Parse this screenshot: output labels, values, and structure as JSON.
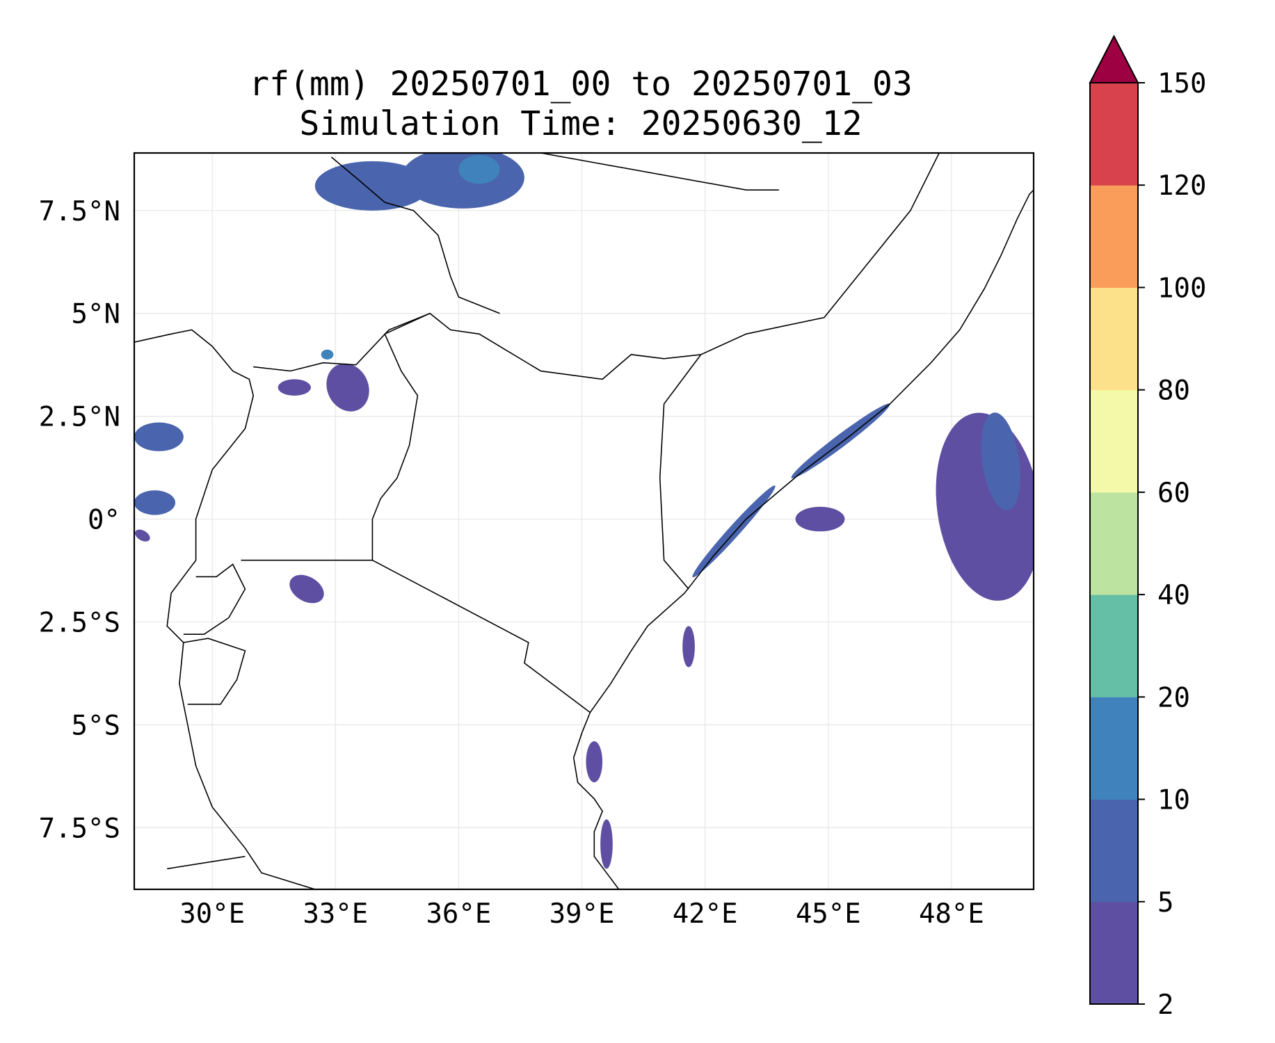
{
  "title": {
    "line1": "rf(mm) 20250701_00 to 20250701_03",
    "line2": "Simulation Time: 20250630_12"
  },
  "map": {
    "lon_range": [
      28.1,
      50.0
    ],
    "lat_range": [
      -9.0,
      8.9
    ],
    "gridlines": true,
    "lon_ticks": [
      {
        "value": 30,
        "label": "30°E"
      },
      {
        "value": 33,
        "label": "33°E"
      },
      {
        "value": 36,
        "label": "36°E"
      },
      {
        "value": 39,
        "label": "39°E"
      },
      {
        "value": 42,
        "label": "42°E"
      },
      {
        "value": 45,
        "label": "45°E"
      },
      {
        "value": 48,
        "label": "48°E"
      }
    ],
    "lat_ticks": [
      {
        "value": 7.5,
        "label": "7.5°N"
      },
      {
        "value": 5,
        "label": "5°N"
      },
      {
        "value": 2.5,
        "label": "2.5°N"
      },
      {
        "value": 0,
        "label": "0°"
      },
      {
        "value": -2.5,
        "label": "2.5°S"
      },
      {
        "value": -5,
        "label": "5°S"
      },
      {
        "value": -7.5,
        "label": "7.5°S"
      }
    ],
    "coastline": [
      [
        39.9,
        -9.0
      ],
      [
        39.6,
        -8.6
      ],
      [
        39.3,
        -8.2
      ],
      [
        39.3,
        -7.6
      ],
      [
        39.5,
        -7.1
      ],
      [
        39.3,
        -6.8
      ],
      [
        38.9,
        -6.4
      ],
      [
        38.8,
        -5.8
      ],
      [
        39.0,
        -5.2
      ],
      [
        39.2,
        -4.7
      ],
      [
        39.7,
        -4.0
      ],
      [
        40.2,
        -3.2
      ],
      [
        40.6,
        -2.6
      ],
      [
        41.5,
        -1.8
      ],
      [
        42.2,
        -0.9
      ],
      [
        43.0,
        0.0
      ],
      [
        44.3,
        1.1
      ],
      [
        45.5,
        2.0
      ],
      [
        46.5,
        2.8
      ],
      [
        47.5,
        3.8
      ],
      [
        48.2,
        4.6
      ],
      [
        48.8,
        5.6
      ],
      [
        49.2,
        6.4
      ],
      [
        49.6,
        7.3
      ],
      [
        49.9,
        7.9
      ],
      [
        50.0,
        8.0
      ]
    ],
    "borders": [
      [
        [
          33.9,
          -1.0
        ],
        [
          37.7,
          -3.0
        ],
        [
          37.6,
          -3.5
        ],
        [
          39.2,
          -4.7
        ]
      ],
      [
        [
          30.7,
          -1.0
        ],
        [
          33.9,
          -1.0
        ],
        [
          33.9,
          0.0
        ],
        [
          34.1,
          0.5
        ],
        [
          34.5,
          1.0
        ],
        [
          34.8,
          1.8
        ],
        [
          35.0,
          3.0
        ],
        [
          34.6,
          3.6
        ],
        [
          34.2,
          4.5
        ],
        [
          35.3,
          5.0
        ],
        [
          35.8,
          4.6
        ],
        [
          36.5,
          4.5
        ],
        [
          38.0,
          3.6
        ],
        [
          39.5,
          3.4
        ],
        [
          40.2,
          4.0
        ],
        [
          41.0,
          3.9
        ],
        [
          41.9,
          4.0
        ]
      ],
      [
        [
          41.9,
          4.0
        ],
        [
          41.0,
          2.8
        ],
        [
          40.9,
          1.0
        ],
        [
          41.0,
          -1.0
        ],
        [
          41.6,
          -1.7
        ]
      ],
      [
        [
          41.9,
          4.0
        ],
        [
          43.0,
          4.5
        ],
        [
          44.9,
          4.9
        ],
        [
          47.0,
          7.5
        ],
        [
          47.7,
          8.9
        ]
      ],
      [
        [
          37.0,
          5.0
        ],
        [
          36.0,
          5.4
        ],
        [
          35.8,
          5.9
        ],
        [
          35.5,
          6.9
        ],
        [
          34.9,
          7.5
        ],
        [
          34.2,
          7.7
        ],
        [
          33.5,
          8.3
        ],
        [
          32.9,
          8.8
        ]
      ],
      [
        [
          31.0,
          3.7
        ],
        [
          31.9,
          3.6
        ],
        [
          32.7,
          3.8
        ],
        [
          33.5,
          3.75
        ],
        [
          34.3,
          4.6
        ],
        [
          35.3,
          5.0
        ]
      ],
      [
        [
          28.1,
          4.3
        ],
        [
          29.0,
          4.5
        ],
        [
          29.5,
          4.6
        ],
        [
          30.0,
          4.2
        ],
        [
          30.5,
          3.6
        ],
        [
          30.9,
          3.4
        ],
        [
          31.0,
          3.0
        ],
        [
          30.8,
          2.2
        ],
        [
          30.0,
          1.2
        ],
        [
          29.6,
          0.0
        ],
        [
          29.6,
          -1.0
        ],
        [
          29.0,
          -1.8
        ],
        [
          28.9,
          -2.6
        ],
        [
          29.3,
          -3.0
        ],
        [
          29.2,
          -4.0
        ],
        [
          29.4,
          -5.0
        ],
        [
          29.6,
          -6.0
        ],
        [
          30.0,
          -7.0
        ],
        [
          30.8,
          -8.0
        ],
        [
          31.2,
          -8.6
        ],
        [
          32.5,
          -9.0
        ]
      ],
      [
        [
          29.3,
          -2.8
        ],
        [
          29.8,
          -2.8
        ],
        [
          30.4,
          -2.4
        ],
        [
          30.8,
          -1.7
        ],
        [
          30.5,
          -1.1
        ],
        [
          30.1,
          -1.4
        ],
        [
          29.6,
          -1.4
        ]
      ],
      [
        [
          29.3,
          -3.0
        ],
        [
          29.9,
          -2.9
        ],
        [
          30.8,
          -3.2
        ],
        [
          30.6,
          -3.9
        ],
        [
          30.2,
          -4.5
        ],
        [
          29.4,
          -4.5
        ]
      ],
      [
        [
          28.9,
          -8.5
        ],
        [
          30.8,
          -8.2
        ]
      ],
      [
        [
          38.0,
          8.9
        ],
        [
          43.0,
          8.0
        ],
        [
          43.8,
          8.0
        ]
      ]
    ],
    "rain_areas": [
      {
        "name": "ne-indian-ocean-band",
        "lon": 48.9,
        "lat": 0.3,
        "rx": 1.25,
        "ry": 2.3,
        "rot": -8,
        "level": 1
      },
      {
        "name": "ne-indian-ocean-band-inner",
        "lon": 49.2,
        "lat": 1.4,
        "rx": 0.45,
        "ry": 1.2,
        "rot": -8,
        "level": 2
      },
      {
        "name": "ethiopian-highlands-west",
        "lon": 33.9,
        "lat": 8.1,
        "rx": 1.4,
        "ry": 0.6,
        "rot": 0,
        "level": 2
      },
      {
        "name": "ethiopian-highlands-core",
        "lon": 36.1,
        "lat": 8.3,
        "rx": 1.5,
        "ry": 0.75,
        "rot": 0,
        "level": 2
      },
      {
        "name": "ethiopian-highlands-peak",
        "lon": 36.5,
        "lat": 8.5,
        "rx": 0.5,
        "ry": 0.35,
        "rot": 0,
        "level": 3
      },
      {
        "name": "coastal-somalia-strip",
        "lon": 45.3,
        "lat": 1.9,
        "rx": 1.5,
        "ry": 0.15,
        "rot": -37,
        "level": 2
      },
      {
        "name": "coastal-kenya-strip",
        "lon": 42.7,
        "lat": -0.3,
        "rx": 1.5,
        "ry": 0.14,
        "rot": -48,
        "level": 2
      },
      {
        "name": "offshore-showers",
        "lon": 44.8,
        "lat": 0.0,
        "rx": 0.6,
        "ry": 0.3,
        "rot": 0,
        "level": 1
      },
      {
        "name": "pemba-zanzibar",
        "lon": 39.3,
        "lat": -5.9,
        "rx": 0.2,
        "ry": 0.5,
        "rot": 0,
        "level": 1
      },
      {
        "name": "mafia-coast",
        "lon": 39.6,
        "lat": -7.9,
        "rx": 0.15,
        "ry": 0.6,
        "rot": 0,
        "level": 1
      },
      {
        "name": "lamu-offshore",
        "lon": 41.6,
        "lat": -3.1,
        "rx": 0.15,
        "ry": 0.5,
        "rot": 0,
        "level": 1
      },
      {
        "name": "lake-victoria-east",
        "lon": 33.3,
        "lat": 3.2,
        "rx": 0.5,
        "ry": 0.6,
        "rot": -25,
        "level": 1
      },
      {
        "name": "uganda-north",
        "lon": 32.0,
        "lat": 3.2,
        "rx": 0.4,
        "ry": 0.2,
        "rot": 0,
        "level": 1
      },
      {
        "name": "congo-north",
        "lon": 28.7,
        "lat": 2.0,
        "rx": 0.6,
        "ry": 0.35,
        "rot": 0,
        "level": 2
      },
      {
        "name": "congo-equator",
        "lon": 28.6,
        "lat": 0.4,
        "rx": 0.5,
        "ry": 0.3,
        "rot": 0,
        "level": 2
      },
      {
        "name": "tanzania-nw",
        "lon": 32.3,
        "lat": -1.7,
        "rx": 0.45,
        "ry": 0.3,
        "rot": 30,
        "level": 1
      },
      {
        "name": "lake-victoria-north-dot",
        "lon": 32.8,
        "lat": 4.0,
        "rx": 0.15,
        "ry": 0.12,
        "rot": 0,
        "level": 3
      },
      {
        "name": "congo-south-dot",
        "lon": 28.3,
        "lat": -0.4,
        "rx": 0.2,
        "ry": 0.12,
        "rot": 30,
        "level": 1
      }
    ]
  },
  "colorbar": {
    "levels": [
      "2",
      "5",
      "10",
      "20",
      "40",
      "60",
      "80",
      "100",
      "120",
      "150"
    ],
    "colors": [
      "#5e4fa2",
      "#4a65ad",
      "#3f82bc",
      "#64bfa6",
      "#bde3a0",
      "#f4f9aa",
      "#fde08a",
      "#fa9c5a",
      "#d7424d",
      "#9e0142"
    ],
    "extend": "max"
  }
}
